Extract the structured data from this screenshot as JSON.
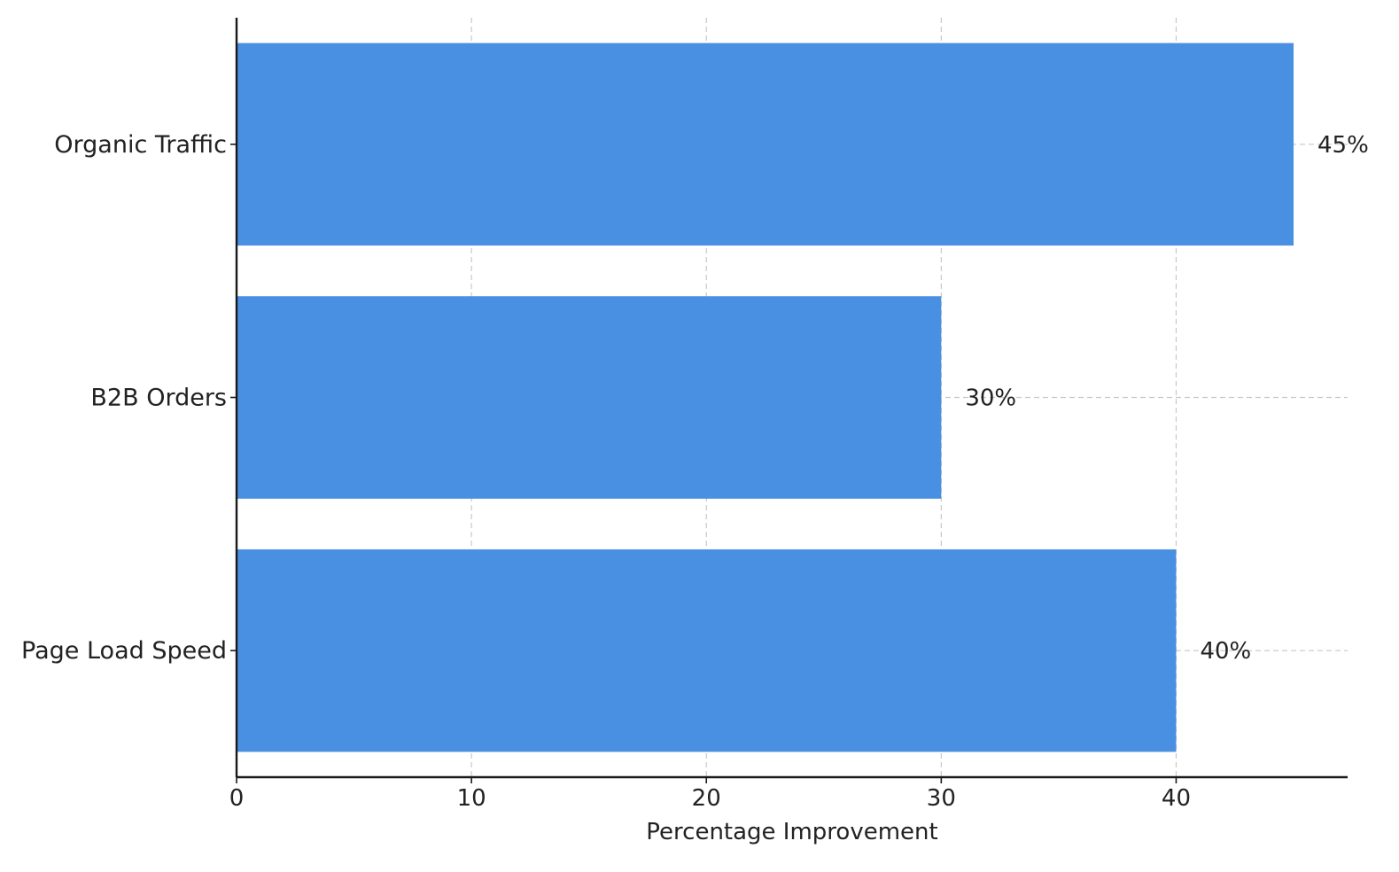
{
  "chart_data": {
    "type": "bar",
    "orientation": "horizontal",
    "categories": [
      "Organic Traffic",
      "B2B Orders",
      "Page Load Speed"
    ],
    "values": [
      45,
      30,
      40
    ],
    "data_labels": [
      "45%",
      "30%",
      "40%"
    ],
    "title": "",
    "xlabel": "Percentage Improvement",
    "ylabel": "",
    "xlim": [
      0,
      47.3
    ],
    "xticks": [
      0,
      10,
      20,
      30,
      40
    ],
    "xtick_labels": [
      "0",
      "10",
      "20",
      "30",
      "40"
    ],
    "grid": true,
    "legend": "none",
    "bar_color": "#4a90e2"
  }
}
